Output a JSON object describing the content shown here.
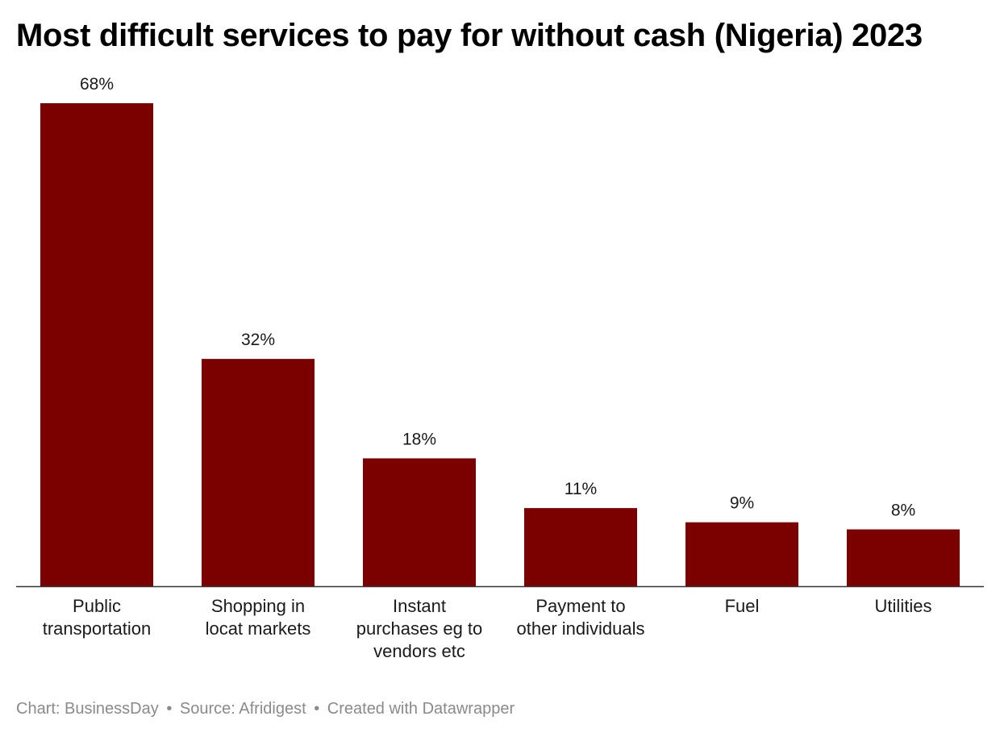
{
  "chart_data": {
    "type": "bar",
    "title": "Most difficult services to pay for without cash (Nigeria) 2023",
    "categories": [
      [
        "Public",
        "transportation"
      ],
      [
        "Shopping in",
        "locat markets"
      ],
      [
        "Instant",
        "purchases eg to",
        "vendors etc"
      ],
      [
        "Payment to",
        "other individuals"
      ],
      [
        "Fuel"
      ],
      [
        "Utilities"
      ]
    ],
    "values": [
      68,
      32,
      18,
      11,
      9,
      8
    ],
    "value_labels": [
      "68%",
      "32%",
      "18%",
      "11%",
      "9%",
      "8%"
    ],
    "unit": "%",
    "ylim": [
      0,
      68
    ],
    "grid": false,
    "bar_color": "#7b0000"
  },
  "footer": {
    "chart_credit": "Chart: BusinessDay",
    "source": "Source: Afridigest",
    "created_with": "Created with Datawrapper",
    "separator": "•"
  },
  "colors": {
    "axis": "#333333",
    "label_text": "#1a1a1a",
    "footer_text": "#8a8a8a"
  }
}
